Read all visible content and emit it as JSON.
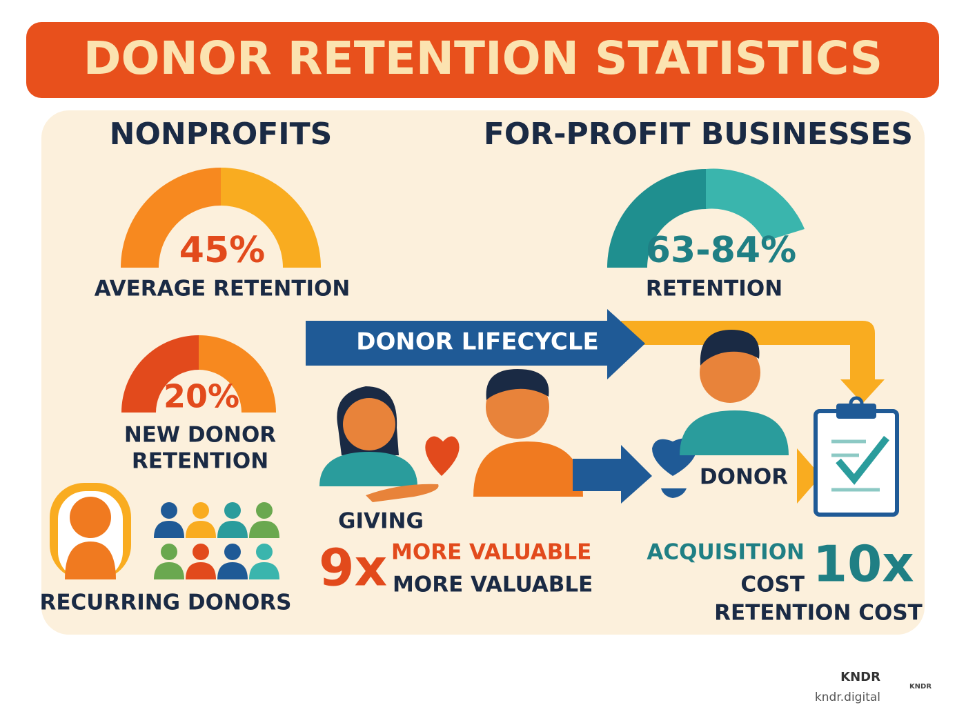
{
  "header": {
    "title": "DONOR RETENTION STATISTICS"
  },
  "nonprofits": {
    "heading": "NONPROFITS",
    "average": {
      "value": "45%",
      "label": "AVERAGE RETENTION"
    },
    "new_donor": {
      "value": "20%",
      "label_lines": [
        "NEW DONOR",
        "RETENTION"
      ]
    },
    "recurring": "RECURRING DONORS"
  },
  "for_profit": {
    "heading": "FOR-PROFIT BUSINESSES",
    "retention": {
      "value": "63-84%",
      "label": "RETENTION"
    }
  },
  "lifecycle": {
    "title": "DONOR LIFECYCLE",
    "giving": "GIVING",
    "multiplier": "9x",
    "multiplier_lines": [
      "MORE VALUABLE",
      "MORE VALUABLE"
    ],
    "donor": "DONOR"
  },
  "cost": {
    "lines": [
      "ACQUISITION",
      "COST"
    ],
    "multiplier": "10x",
    "label": "RETENTION COST"
  },
  "footer": {
    "brand": "KNDR",
    "url": "kndr.digital",
    "logo": "KNDR"
  }
}
